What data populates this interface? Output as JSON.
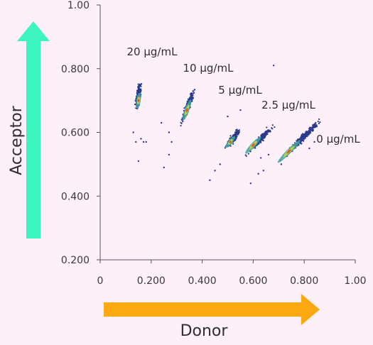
{
  "chart_data": {
    "type": "scatter",
    "title": "",
    "xlabel": "Donor",
    "ylabel": "Acceptor",
    "xlim": [
      0,
      1.0
    ],
    "ylim": [
      0.2,
      1.0
    ],
    "x_ticks": [
      "0",
      "0.200",
      "0.400",
      "0.600",
      "0.800",
      "1.00"
    ],
    "y_ticks": [
      "0.200",
      "0.400",
      "0.600",
      "0.800",
      "1.00"
    ],
    "grid": false,
    "colors": {
      "x_arrow": "#fca810",
      "y_arrow": "#3cf5bf",
      "points": "#2a3a8c",
      "density_mid": "#3fa4a0",
      "density_high": "#c9d63a",
      "density_peak": "#e0402a"
    },
    "series": [
      {
        "name": "20 µg/mL",
        "center": [
          0.15,
          0.7
        ],
        "ax_start": [
          0.14,
          0.66
        ],
        "ax_end": [
          0.16,
          0.77
        ],
        "width": 0.008,
        "count": 220,
        "strays": [
          [
            0.14,
            0.57
          ],
          [
            0.16,
            0.58
          ],
          [
            0.17,
            0.57
          ],
          [
            0.13,
            0.6
          ],
          [
            0.15,
            0.51
          ],
          [
            0.18,
            0.57
          ]
        ]
      },
      {
        "name": "10 µg/mL",
        "center": [
          0.34,
          0.67
        ],
        "ax_start": [
          0.31,
          0.61
        ],
        "ax_end": [
          0.38,
          0.76
        ],
        "width": 0.009,
        "count": 240,
        "strays": [
          [
            0.28,
            0.57
          ],
          [
            0.27,
            0.53
          ],
          [
            0.25,
            0.49
          ],
          [
            0.24,
            0.63
          ],
          [
            0.27,
            0.6
          ]
        ]
      },
      {
        "name": "5 µg/mL",
        "center": [
          0.51,
          0.57
        ],
        "ax_start": [
          0.48,
          0.54
        ],
        "ax_end": [
          0.56,
          0.62
        ],
        "width": 0.009,
        "count": 200,
        "strays": [
          [
            0.45,
            0.48
          ],
          [
            0.43,
            0.45
          ],
          [
            0.5,
            0.65
          ],
          [
            0.55,
            0.67
          ],
          [
            0.47,
            0.5
          ]
        ]
      },
      {
        "name": "2.5 µg/mL",
        "center": [
          0.6,
          0.56
        ],
        "ax_start": [
          0.56,
          0.52
        ],
        "ax_end": [
          0.7,
          0.64
        ],
        "width": 0.009,
        "count": 260,
        "strays": [
          [
            0.59,
            0.44
          ],
          [
            0.62,
            0.47
          ],
          [
            0.64,
            0.48
          ],
          [
            0.63,
            0.52
          ],
          [
            0.66,
            0.53
          ],
          [
            0.68,
            0.81
          ]
        ]
      },
      {
        "name": "0 µg/mL",
        "center": [
          0.74,
          0.54
        ],
        "ax_start": [
          0.69,
          0.5
        ],
        "ax_end": [
          0.89,
          0.66
        ],
        "width": 0.009,
        "count": 320,
        "strays": [
          [
            0.82,
            0.55
          ],
          [
            0.84,
            0.57
          ],
          [
            0.71,
            0.5
          ],
          [
            0.79,
            0.59
          ]
        ]
      }
    ]
  }
}
